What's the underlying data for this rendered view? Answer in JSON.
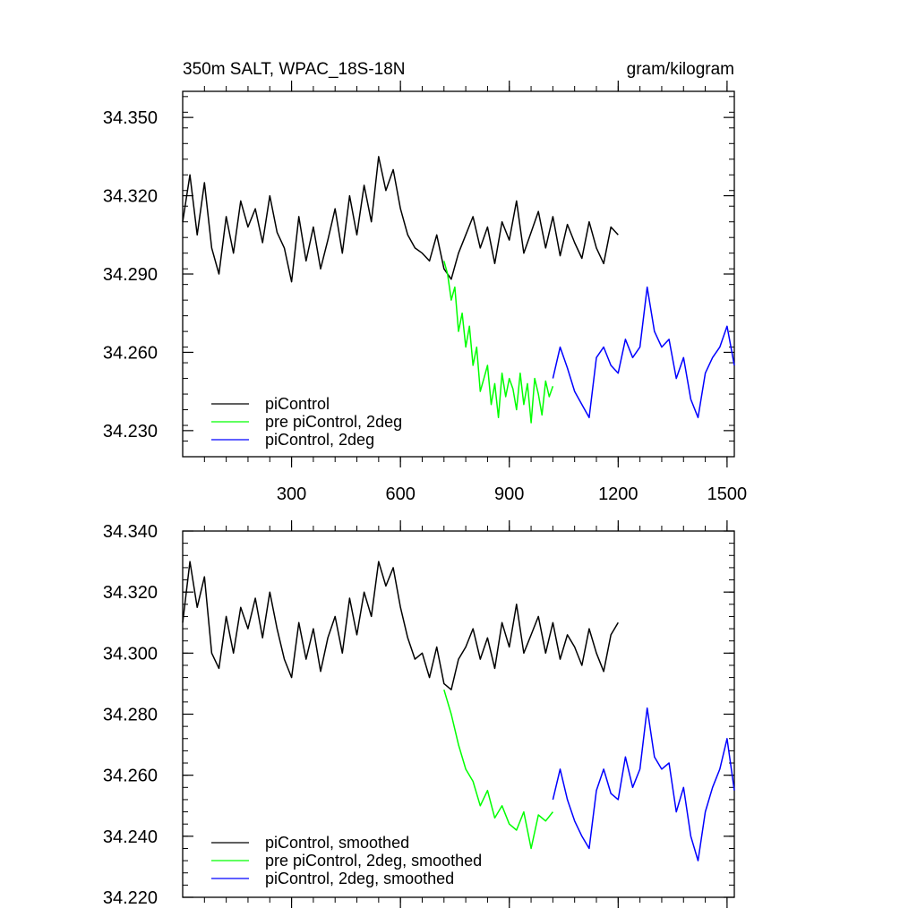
{
  "chart_data": [
    {
      "type": "line",
      "title": "350m SALT, WPAC_18S-18N",
      "units": "gram/kilogram",
      "xlim": [
        0,
        1520
      ],
      "ylim": [
        34.22,
        34.36
      ],
      "xticks": [
        300,
        600,
        900,
        1200,
        1500
      ],
      "yticks": [
        34.23,
        34.26,
        34.29,
        34.32,
        34.35
      ],
      "ytick_labels": [
        "34.230",
        "34.260",
        "34.290",
        "34.320",
        "34.350"
      ],
      "xtick_labels": [
        "300",
        "600",
        "900",
        "1200",
        "1500"
      ],
      "legend_position": "bottom-left",
      "series": [
        {
          "name": "piControl",
          "color": "#000000",
          "x": [
            0,
            20,
            40,
            60,
            80,
            100,
            120,
            140,
            160,
            180,
            200,
            220,
            240,
            260,
            280,
            300,
            320,
            340,
            360,
            380,
            400,
            420,
            440,
            460,
            480,
            500,
            520,
            540,
            560,
            580,
            600,
            620,
            640,
            660,
            680,
            700,
            720,
            740,
            760,
            780,
            800,
            820,
            840,
            860,
            880,
            900,
            920,
            940,
            960,
            980,
            1000,
            1020,
            1040,
            1060,
            1080,
            1100,
            1120,
            1140,
            1160,
            1180,
            1200
          ],
          "values": [
            34.31,
            34.328,
            34.305,
            34.325,
            34.3,
            34.29,
            34.312,
            34.298,
            34.318,
            34.308,
            34.315,
            34.302,
            34.32,
            34.306,
            34.3,
            34.287,
            34.312,
            34.295,
            34.308,
            34.292,
            34.303,
            34.315,
            34.298,
            34.32,
            34.305,
            34.324,
            34.31,
            34.335,
            34.322,
            34.33,
            34.315,
            34.305,
            34.3,
            34.298,
            34.295,
            34.305,
            34.292,
            34.288,
            34.298,
            34.305,
            34.312,
            34.3,
            34.308,
            34.294,
            34.31,
            34.303,
            34.318,
            34.298,
            34.306,
            34.314,
            34.3,
            34.312,
            34.297,
            34.309,
            34.302,
            34.296,
            34.31,
            34.3,
            34.294,
            34.308,
            34.305
          ]
        },
        {
          "name": "pre piControl, 2deg",
          "color": "#00ff00",
          "x": [
            720,
            730,
            740,
            750,
            760,
            770,
            780,
            790,
            800,
            810,
            820,
            830,
            840,
            850,
            860,
            870,
            880,
            890,
            900,
            910,
            920,
            930,
            940,
            950,
            960,
            970,
            980,
            990,
            1000,
            1010,
            1020
          ],
          "values": [
            34.295,
            34.29,
            34.28,
            34.285,
            34.268,
            34.275,
            34.262,
            34.27,
            34.255,
            34.262,
            34.245,
            34.25,
            34.255,
            34.24,
            34.248,
            34.235,
            34.252,
            34.243,
            34.25,
            34.246,
            34.238,
            34.252,
            34.24,
            34.248,
            34.233,
            34.25,
            34.244,
            34.236,
            34.249,
            34.243,
            34.247
          ]
        },
        {
          "name": "piControl, 2deg",
          "color": "#0000ff",
          "x": [
            1020,
            1040,
            1060,
            1080,
            1100,
            1120,
            1140,
            1160,
            1180,
            1200,
            1220,
            1240,
            1260,
            1280,
            1300,
            1320,
            1340,
            1360,
            1380,
            1400,
            1420,
            1440,
            1460,
            1480,
            1500,
            1520
          ],
          "values": [
            34.25,
            34.262,
            34.254,
            34.245,
            34.24,
            34.235,
            34.258,
            34.262,
            34.255,
            34.252,
            34.265,
            34.258,
            34.262,
            34.285,
            34.268,
            34.262,
            34.265,
            34.25,
            34.258,
            34.242,
            34.235,
            34.252,
            34.258,
            34.262,
            34.27,
            34.255
          ]
        }
      ]
    },
    {
      "type": "line",
      "xlim": [
        0,
        1520
      ],
      "ylim": [
        34.22,
        34.34
      ],
      "xticks": [
        300,
        600,
        900,
        1200,
        1500
      ],
      "yticks": [
        34.22,
        34.24,
        34.26,
        34.28,
        34.3,
        34.32,
        34.34
      ],
      "ytick_labels": [
        "34.220",
        "34.240",
        "34.260",
        "34.280",
        "34.300",
        "34.320",
        "34.340"
      ],
      "legend_position": "bottom-left",
      "series": [
        {
          "name": "piControl, smoothed",
          "color": "#000000",
          "x": [
            0,
            20,
            40,
            60,
            80,
            100,
            120,
            140,
            160,
            180,
            200,
            220,
            240,
            260,
            280,
            300,
            320,
            340,
            360,
            380,
            400,
            420,
            440,
            460,
            480,
            500,
            520,
            540,
            560,
            580,
            600,
            620,
            640,
            660,
            680,
            700,
            720,
            740,
            760,
            780,
            800,
            820,
            840,
            860,
            880,
            900,
            920,
            940,
            960,
            980,
            1000,
            1020,
            1040,
            1060,
            1080,
            1100,
            1120,
            1140,
            1160,
            1180,
            1200
          ],
          "values": [
            34.31,
            34.33,
            34.315,
            34.325,
            34.3,
            34.295,
            34.312,
            34.3,
            34.315,
            34.308,
            34.318,
            34.305,
            34.32,
            34.308,
            34.298,
            34.292,
            34.31,
            34.298,
            34.308,
            34.294,
            34.305,
            34.312,
            34.3,
            34.318,
            34.306,
            34.32,
            34.312,
            34.33,
            34.322,
            34.328,
            34.315,
            34.305,
            34.298,
            34.3,
            34.292,
            34.302,
            34.29,
            34.288,
            34.298,
            34.302,
            34.308,
            34.298,
            34.305,
            34.295,
            34.31,
            34.302,
            34.316,
            34.3,
            34.306,
            34.312,
            34.3,
            34.31,
            34.298,
            34.306,
            34.302,
            34.296,
            34.308,
            34.3,
            34.294,
            34.306,
            34.31
          ]
        },
        {
          "name": "pre piControl, 2deg, smoothed",
          "color": "#00ff00",
          "x": [
            720,
            740,
            760,
            780,
            800,
            820,
            840,
            860,
            880,
            900,
            920,
            940,
            960,
            980,
            1000,
            1020
          ],
          "values": [
            34.288,
            34.28,
            34.27,
            34.262,
            34.258,
            34.25,
            34.255,
            34.246,
            34.25,
            34.244,
            34.242,
            34.248,
            34.236,
            34.247,
            34.245,
            34.248
          ]
        },
        {
          "name": "piControl, 2deg, smoothed",
          "color": "#0000ff",
          "x": [
            1020,
            1040,
            1060,
            1080,
            1100,
            1120,
            1140,
            1160,
            1180,
            1200,
            1220,
            1240,
            1260,
            1280,
            1300,
            1320,
            1340,
            1360,
            1380,
            1400,
            1420,
            1440,
            1460,
            1480,
            1500,
            1520
          ],
          "values": [
            34.252,
            34.262,
            34.252,
            34.245,
            34.24,
            34.236,
            34.255,
            34.262,
            34.254,
            34.252,
            34.266,
            34.256,
            34.262,
            34.282,
            34.266,
            34.262,
            34.264,
            34.248,
            34.256,
            34.24,
            34.232,
            34.248,
            34.256,
            34.262,
            34.272,
            34.255
          ]
        }
      ]
    }
  ]
}
